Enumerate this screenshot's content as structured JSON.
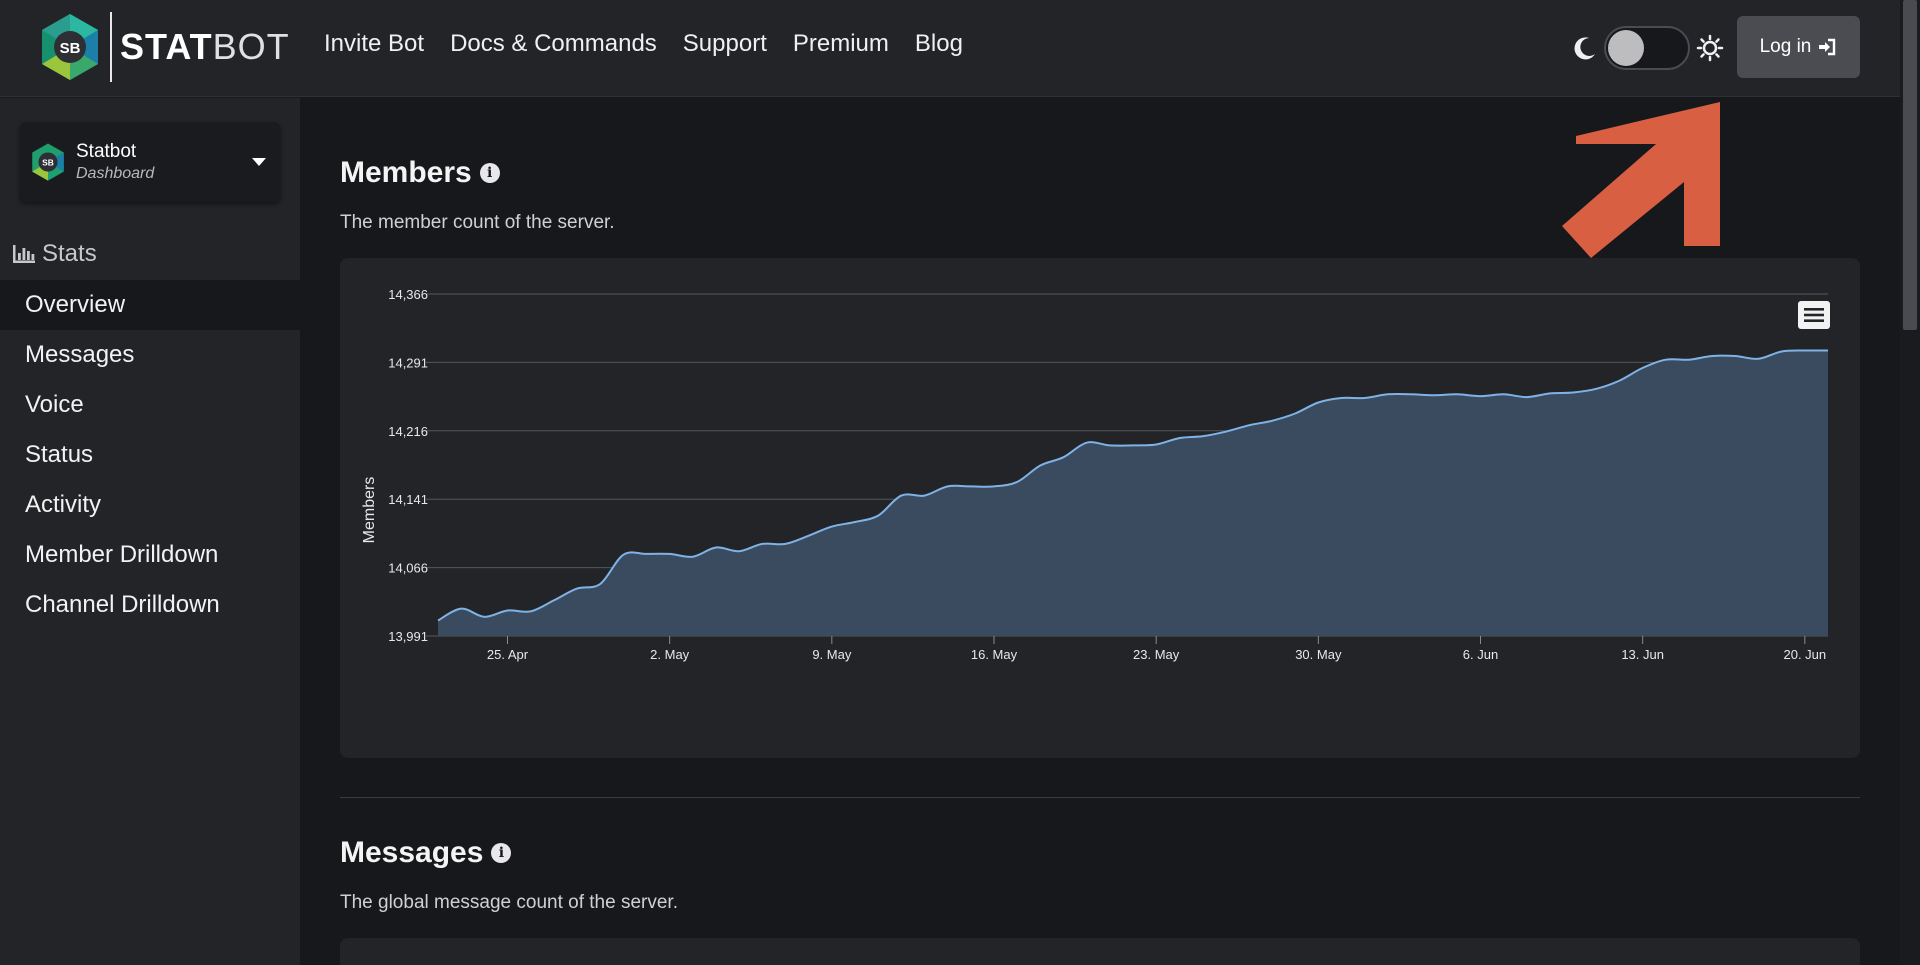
{
  "header": {
    "logo_text_bold": "STAT",
    "logo_text_light": "BOT",
    "logo_badge": "SB",
    "nav": [
      "Invite Bot",
      "Docs & Commands",
      "Support",
      "Premium",
      "Blog"
    ],
    "login_label": "Log in"
  },
  "sidebar": {
    "server_name": "Statbot",
    "server_sub": "Dashboard",
    "section_label": "Stats",
    "items": [
      "Overview",
      "Messages",
      "Voice",
      "Status",
      "Activity",
      "Member Drilldown",
      "Channel Drilldown"
    ],
    "active_index": 0
  },
  "sections": {
    "members": {
      "title": "Members",
      "description": "The member count of the server."
    },
    "messages": {
      "title": "Messages",
      "description": "The global message count of the server."
    }
  },
  "colors": {
    "accent_line": "#7fb3e6",
    "area_fill": "#3a4a5f",
    "annotation_arrow": "#d95f43"
  },
  "chart_data": {
    "type": "area",
    "title": "",
    "xlabel": "",
    "ylabel": "Members",
    "ylim": [
      13991,
      14366
    ],
    "yticks": [
      13991,
      14066,
      14141,
      14216,
      14291,
      14366
    ],
    "ytick_labels": [
      "13,991",
      "14,066",
      "14,141",
      "14,216",
      "14,291",
      "14,366"
    ],
    "xtick_labels": [
      "25. Apr",
      "2. May",
      "9. May",
      "16. May",
      "23. May",
      "30. May",
      "6. Jun",
      "13. Jun",
      "20. Jun"
    ],
    "xtick_dates": [
      "2024-04-25",
      "2024-05-02",
      "2024-05-09",
      "2024-05-16",
      "2024-05-23",
      "2024-05-30",
      "2024-06-06",
      "2024-06-13",
      "2024-06-20"
    ],
    "grid": true,
    "series": [
      {
        "x": [
          "2024-04-22",
          "2024-04-23",
          "2024-04-24",
          "2024-04-25",
          "2024-04-26",
          "2024-04-27",
          "2024-04-28",
          "2024-04-29",
          "2024-04-30",
          "2024-05-01",
          "2024-05-02",
          "2024-05-03",
          "2024-05-04",
          "2024-05-05",
          "2024-05-06",
          "2024-05-07",
          "2024-05-08",
          "2024-05-09",
          "2024-05-10",
          "2024-05-11",
          "2024-05-12",
          "2024-05-13",
          "2024-05-14",
          "2024-05-15",
          "2024-05-16",
          "2024-05-17",
          "2024-05-18",
          "2024-05-19",
          "2024-05-20",
          "2024-05-21",
          "2024-05-22",
          "2024-05-23",
          "2024-05-24",
          "2024-05-25",
          "2024-05-26",
          "2024-05-27",
          "2024-05-28",
          "2024-05-29",
          "2024-05-30",
          "2024-05-31",
          "2024-06-01",
          "2024-06-02",
          "2024-06-03",
          "2024-06-04",
          "2024-06-05",
          "2024-06-06",
          "2024-06-07",
          "2024-06-08",
          "2024-06-09",
          "2024-06-10",
          "2024-06-11",
          "2024-06-12",
          "2024-06-13",
          "2024-06-14",
          "2024-06-15",
          "2024-06-16",
          "2024-06-17",
          "2024-06-18",
          "2024-06-19",
          "2024-06-20",
          "2024-06-21"
        ],
        "values": [
          14008,
          14021,
          14012,
          14019,
          14018,
          14030,
          14043,
          14048,
          14080,
          14081,
          14081,
          14078,
          14088,
          14084,
          14092,
          14092,
          14101,
          14111,
          14116,
          14123,
          14145,
          14145,
          14155,
          14155,
          14155,
          14160,
          14178,
          14187,
          14203,
          14200,
          14200,
          14201,
          14208,
          14210,
          14215,
          14222,
          14227,
          14235,
          14247,
          14252,
          14252,
          14256,
          14256,
          14255,
          14256,
          14254,
          14256,
          14253,
          14257,
          14258,
          14262,
          14271,
          14285,
          14294,
          14294,
          14298,
          14298,
          14295,
          14303,
          14304,
          14304
        ]
      }
    ]
  }
}
